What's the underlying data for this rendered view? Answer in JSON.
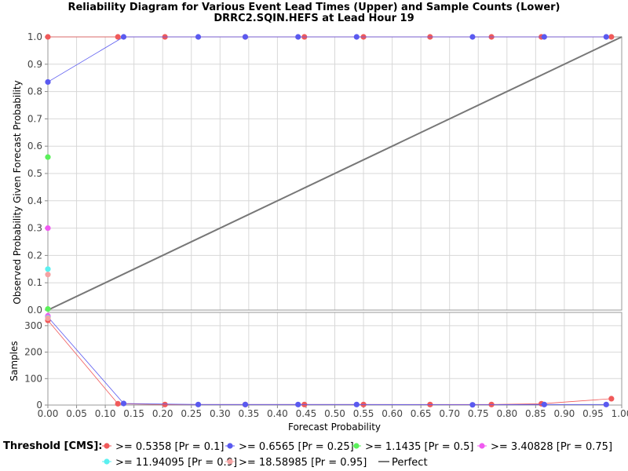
{
  "chart_data": {
    "type": "line",
    "title": "Reliability Diagram for Various Event Lead Times (Upper) and Sample Counts (Lower)",
    "subtitle": "DRRC2.SQIN.HEFS at Lead Hour 19",
    "xlabel": "Forecast Probability",
    "xlim": [
      0,
      1
    ],
    "x_ticks": [
      "0.00",
      "0.05",
      "0.10",
      "0.15",
      "0.20",
      "0.25",
      "0.30",
      "0.35",
      "0.40",
      "0.45",
      "0.50",
      "0.55",
      "0.60",
      "0.65",
      "0.70",
      "0.75",
      "0.80",
      "0.85",
      "0.90",
      "0.95",
      "1.00"
    ],
    "upper": {
      "ylabel": "Observed Probability Given Forecast Probability",
      "ylim": [
        0,
        1
      ],
      "y_ticks": [
        "0.0",
        "0.1",
        "0.2",
        "0.3",
        "0.4",
        "0.5",
        "0.6",
        "0.7",
        "0.8",
        "0.9",
        "1.0"
      ],
      "grid": true
    },
    "lower": {
      "ylabel": "Samples",
      "ylim": [
        0,
        350
      ],
      "y_ticks": [
        "0",
        "100",
        "200",
        "300"
      ],
      "grid": true
    },
    "legend_title": "Threshold [CMS]:",
    "legend_position": "bottom",
    "series": [
      {
        "name": ">= 0.5358 [Pr = 0.1]",
        "color": "#f05a5a",
        "reliability": [
          [
            0.0,
            1.0
          ],
          [
            0.122,
            1.0
          ],
          [
            0.204,
            1.0
          ],
          [
            0.344,
            1.0
          ],
          [
            0.447,
            1.0
          ],
          [
            0.55,
            1.0
          ],
          [
            0.666,
            1.0
          ],
          [
            0.773,
            1.0
          ],
          [
            0.86,
            1.0
          ],
          [
            0.982,
            1.0
          ]
        ],
        "samples": [
          [
            0.0,
            320
          ],
          [
            0.122,
            5
          ],
          [
            0.204,
            2
          ],
          [
            0.344,
            2
          ],
          [
            0.447,
            2
          ],
          [
            0.55,
            2
          ],
          [
            0.666,
            2
          ],
          [
            0.773,
            2
          ],
          [
            0.86,
            5
          ],
          [
            0.982,
            24
          ]
        ]
      },
      {
        "name": ">= 0.6565 [Pr = 0.25]",
        "color": "#5a5af0",
        "reliability": [
          [
            0.0,
            0.835
          ],
          [
            0.132,
            1.0
          ],
          [
            0.262,
            1.0
          ],
          [
            0.344,
            1.0
          ],
          [
            0.436,
            1.0
          ],
          [
            0.538,
            1.0
          ],
          [
            0.74,
            1.0
          ],
          [
            0.865,
            1.0
          ],
          [
            0.973,
            1.0
          ]
        ],
        "samples": [
          [
            0.0,
            333
          ],
          [
            0.132,
            6
          ],
          [
            0.262,
            2
          ],
          [
            0.344,
            2
          ],
          [
            0.436,
            2
          ],
          [
            0.538,
            2
          ],
          [
            0.74,
            1
          ],
          [
            0.865,
            2
          ],
          [
            0.973,
            2
          ]
        ]
      },
      {
        "name": ">= 1.1435 [Pr = 0.5]",
        "color": "#5af05a",
        "reliability": [
          [
            0.0,
            0.56
          ]
        ],
        "samples": [
          [
            0.0,
            363
          ]
        ]
      },
      {
        "name": ">= 3.40828 [Pr = 0.75]",
        "color": "#f05af0",
        "reliability": [
          [
            0.0,
            0.3
          ]
        ],
        "samples": [
          [
            0.0,
            337
          ]
        ]
      },
      {
        "name": ">= 11.94095 [Pr = 0.9]",
        "color": "#5af0f0",
        "reliability": [
          [
            0.0,
            0.15
          ]
        ],
        "samples": [
          [
            0.0,
            330
          ]
        ]
      },
      {
        "name": ">= 18.58985 [Pr = 0.95]",
        "color": "#f5a3a3",
        "reliability": [
          [
            0.0,
            0.13
          ]
        ],
        "samples": [
          [
            0.0,
            328
          ]
        ]
      }
    ],
    "perfect": {
      "name": "Perfect",
      "color": "#777777",
      "points": [
        [
          0,
          0
        ],
        [
          1,
          1
        ]
      ]
    }
  }
}
